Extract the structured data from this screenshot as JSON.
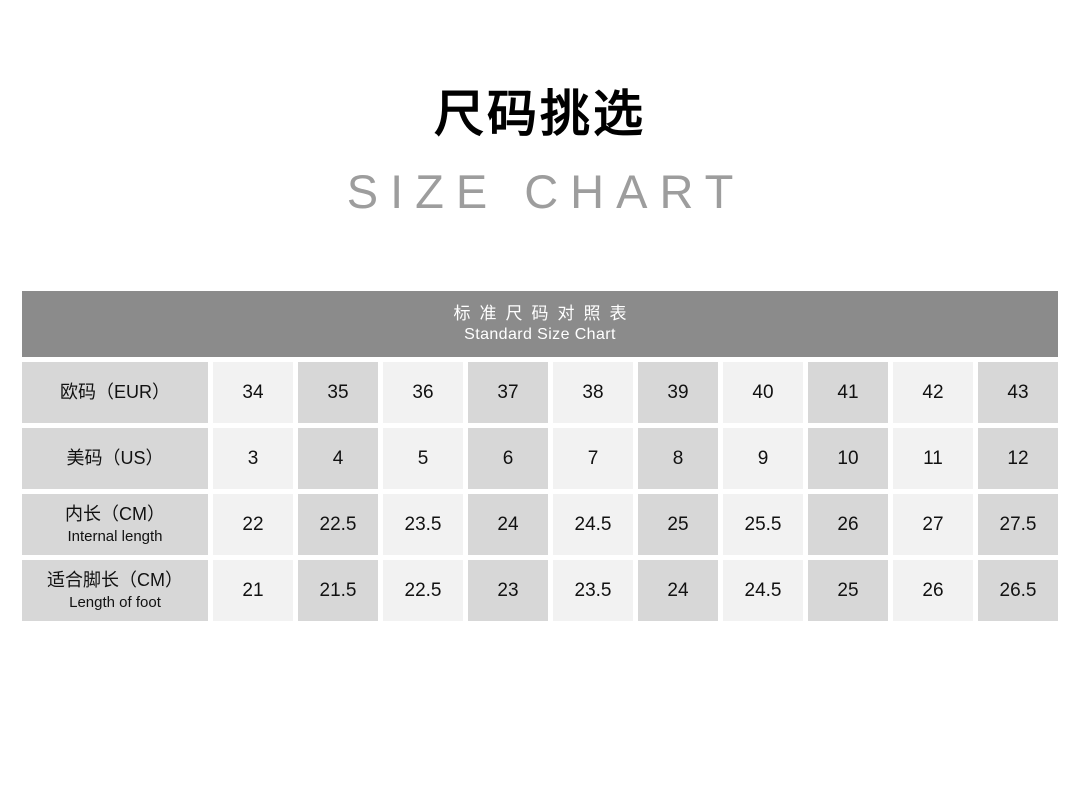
{
  "page": {
    "title_cn": "尺码挑选",
    "title_en": "SIZE CHART"
  },
  "table_header": {
    "cn": "标准尺码对照表",
    "en": "Standard Size Chart"
  },
  "chart_data": {
    "type": "table",
    "title_cn": "标准尺码对照表",
    "title_en": "Standard Size Chart",
    "rows": [
      {
        "label_cn": "欧码（EUR）",
        "label_en": "",
        "values": [
          "34",
          "35",
          "36",
          "37",
          "38",
          "39",
          "40",
          "41",
          "42",
          "43"
        ]
      },
      {
        "label_cn": "美码（US）",
        "label_en": "",
        "values": [
          "3",
          "4",
          "5",
          "6",
          "7",
          "8",
          "9",
          "10",
          "11",
          "12"
        ]
      },
      {
        "label_cn": "内长（CM）",
        "label_en": "Internal length",
        "values": [
          "22",
          "22.5",
          "23.5",
          "24",
          "24.5",
          "25",
          "25.5",
          "26",
          "27",
          "27.5"
        ]
      },
      {
        "label_cn": "适合脚长（CM）",
        "label_en": "Length of foot",
        "values": [
          "21",
          "21.5",
          "22.5",
          "23",
          "23.5",
          "24",
          "24.5",
          "25",
          "26",
          "26.5"
        ]
      }
    ],
    "layout": {
      "alternating_columns": true,
      "first_data_column_shade": "light",
      "label_column_shade": "dark"
    },
    "colors": {
      "header_bg": "#8b8b8b",
      "header_text": "#ffffff",
      "cell_dark": "#d7d7d7",
      "cell_light": "#f2f2f2",
      "text": "#111111",
      "title_cn_color": "#000000",
      "title_en_color": "#9d9d9d",
      "page_bg": "#ffffff"
    }
  }
}
